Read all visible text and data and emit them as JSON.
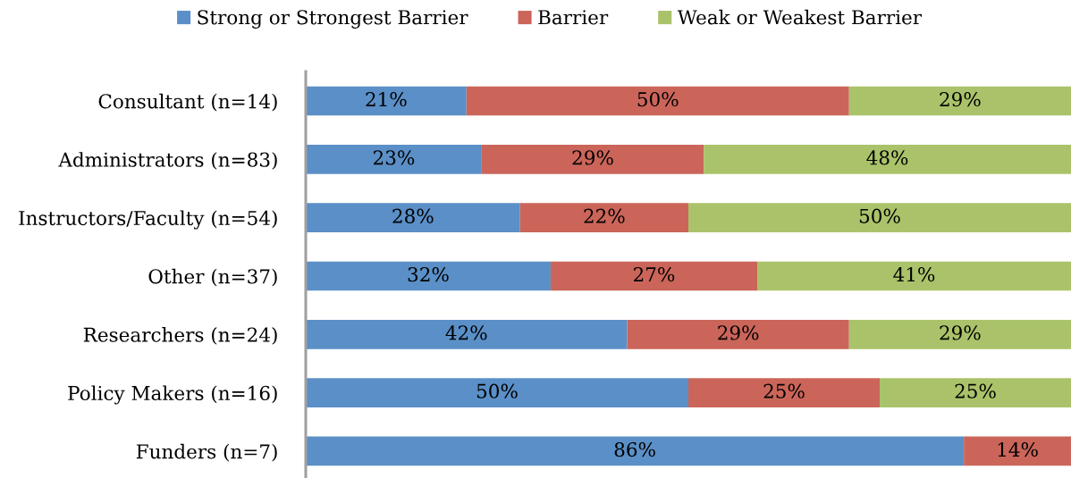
{
  "chart_data": {
    "type": "bar",
    "orientation": "horizontal",
    "stacked": true,
    "categories": [
      "Consultant (n=14)",
      "Administrators (n=83)",
      "Instructors/Faculty (n=54)",
      "Other (n=37)",
      "Researchers (n=24)",
      "Policy Makers (n=16)",
      "Funders (n=7)"
    ],
    "series": [
      {
        "name": "Strong or Strongest Barrier",
        "color": "#5b8fc7",
        "values": [
          21,
          23,
          28,
          32,
          42,
          50,
          86
        ],
        "value_labels": [
          "21%",
          "23%",
          "28%",
          "32%",
          "42%",
          "50%",
          "86%"
        ]
      },
      {
        "name": "Barrier",
        "color": "#cb655a",
        "values": [
          50,
          29,
          22,
          27,
          29,
          25,
          14
        ],
        "value_labels": [
          "50%",
          "29%",
          "22%",
          "27%",
          "29%",
          "25%",
          "14%"
        ]
      },
      {
        "name": "Weak or Weakest Barrier",
        "color": "#aac36a",
        "values": [
          29,
          48,
          50,
          41,
          29,
          25,
          null
        ],
        "value_labels": [
          "29%",
          "48%",
          "50%",
          "41%",
          "29%",
          "25%",
          null
        ]
      }
    ],
    "xlim": [
      0,
      100
    ],
    "tick_labels": "y",
    "legend": "top",
    "grid": false
  }
}
